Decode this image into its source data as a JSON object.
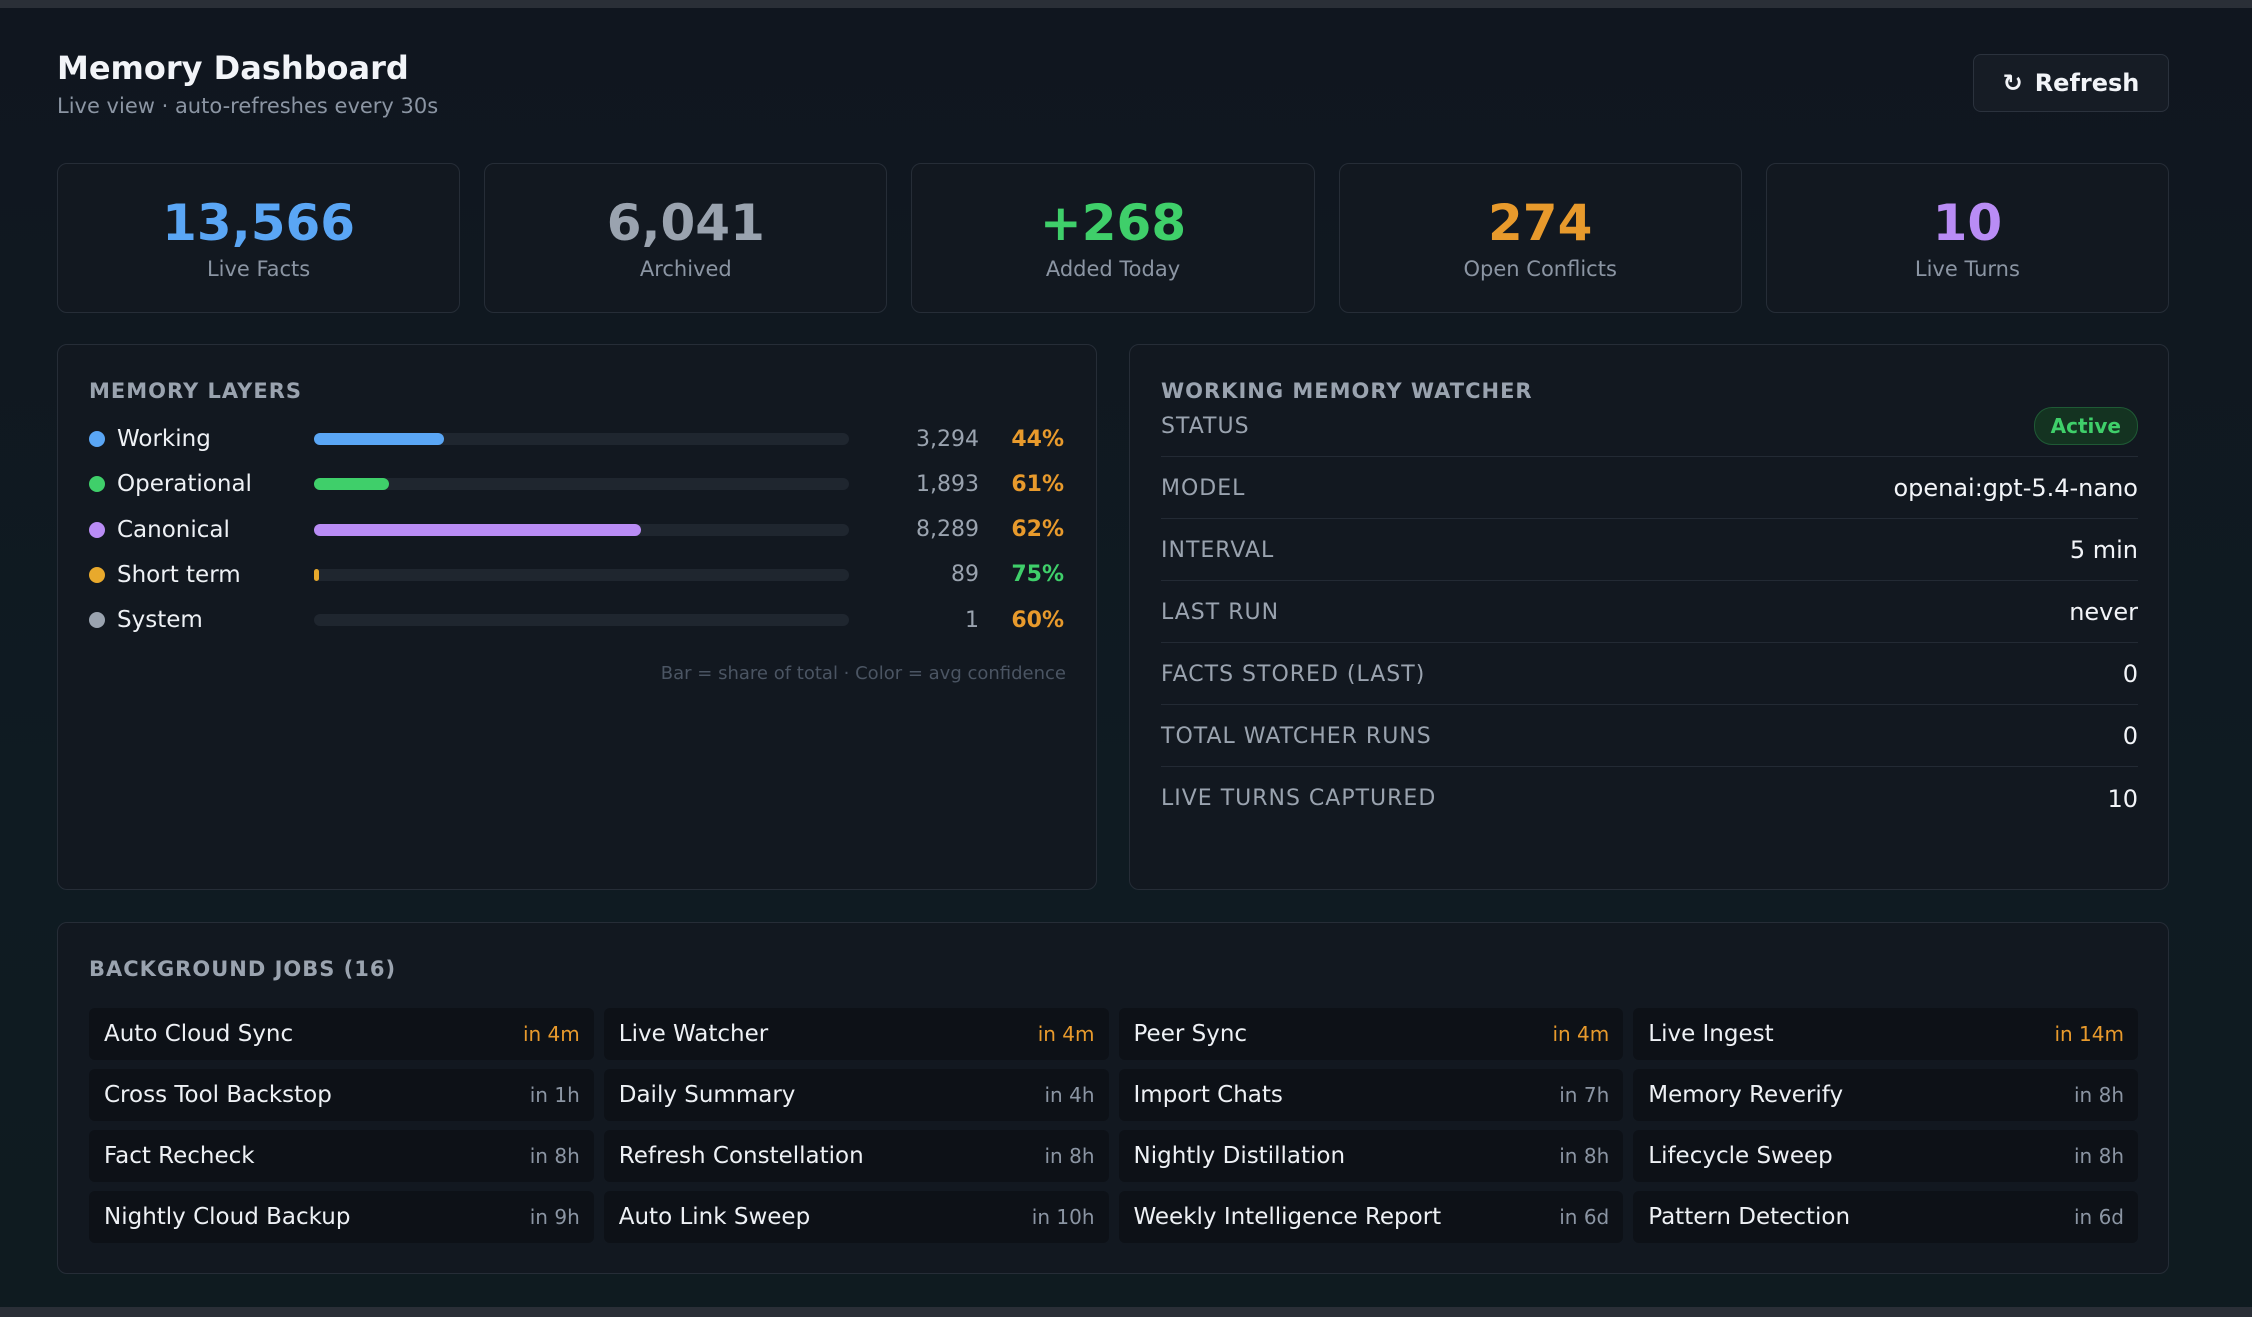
{
  "header": {
    "title": "Memory Dashboard",
    "subtitle": "Live view · auto-refreshes every 30s",
    "refresh_icon": "↻",
    "refresh_label": "Refresh"
  },
  "stats": [
    {
      "value": "13,566",
      "label": "Live Facts",
      "color": "#5aa6f5"
    },
    {
      "value": "6,041",
      "label": "Archived",
      "color": "#9aa3af"
    },
    {
      "value": "+268",
      "label": "Added Today",
      "color": "#3fcf6a"
    },
    {
      "value": "274",
      "label": "Open Conflicts",
      "color": "#e89a2c"
    },
    {
      "value": "10",
      "label": "Live Turns",
      "color": "#b98cf5"
    }
  ],
  "layers": {
    "title": "MEMORY LAYERS",
    "note": "Bar = share of total · Color = avg confidence",
    "items": [
      {
        "name": "Working",
        "count": "3,294",
        "pct": "44%",
        "share": 0.243,
        "dot": "#5aa6f5",
        "bar": "#5aa6f5",
        "pct_color": "#e89a2c"
      },
      {
        "name": "Operational",
        "count": "1,893",
        "pct": "61%",
        "share": 0.14,
        "dot": "#3fcf6a",
        "bar": "#3fcf6a",
        "pct_color": "#e89a2c"
      },
      {
        "name": "Canonical",
        "count": "8,289",
        "pct": "62%",
        "share": 0.611,
        "dot": "#b98cf5",
        "bar": "#b98cf5",
        "pct_color": "#e89a2c"
      },
      {
        "name": "Short term",
        "count": "89",
        "pct": "75%",
        "share": 0.007,
        "dot": "#e8a92c",
        "bar": "#e8a92c",
        "pct_color": "#3fcf6a"
      },
      {
        "name": "System",
        "count": "1",
        "pct": "60%",
        "share": 0.0,
        "dot": "#9aa3af",
        "bar": "#9aa3af",
        "pct_color": "#e89a2c"
      }
    ]
  },
  "watcher": {
    "title": "WORKING MEMORY WATCHER",
    "status_key": "STATUS",
    "status_value": "Active",
    "rows": [
      {
        "key": "MODEL",
        "value": "openai:gpt-5.4-nano"
      },
      {
        "key": "INTERVAL",
        "value": "5 min"
      },
      {
        "key": "LAST RUN",
        "value": "never"
      },
      {
        "key": "FACTS STORED (LAST)",
        "value": "0"
      },
      {
        "key": "TOTAL WATCHER RUNS",
        "value": "0"
      },
      {
        "key": "LIVE TURNS CAPTURED",
        "value": "10"
      }
    ]
  },
  "jobs": {
    "title": "BACKGROUND JOBS (16)",
    "items": [
      {
        "name": "Auto Cloud Sync",
        "when": "in 4m",
        "soon": true
      },
      {
        "name": "Live Watcher",
        "when": "in 4m",
        "soon": true
      },
      {
        "name": "Peer Sync",
        "when": "in 4m",
        "soon": true
      },
      {
        "name": "Live Ingest",
        "when": "in 14m",
        "soon": true
      },
      {
        "name": "Cross Tool Backstop",
        "when": "in 1h",
        "soon": false
      },
      {
        "name": "Daily Summary",
        "when": "in 4h",
        "soon": false
      },
      {
        "name": "Import Chats",
        "when": "in 7h",
        "soon": false
      },
      {
        "name": "Memory Reverify",
        "when": "in 8h",
        "soon": false
      },
      {
        "name": "Fact Recheck",
        "when": "in 8h",
        "soon": false
      },
      {
        "name": "Refresh Constellation",
        "when": "in 8h",
        "soon": false
      },
      {
        "name": "Nightly Distillation",
        "when": "in 8h",
        "soon": false
      },
      {
        "name": "Lifecycle Sweep",
        "when": "in 8h",
        "soon": false
      },
      {
        "name": "Nightly Cloud Backup",
        "when": "in 9h",
        "soon": false
      },
      {
        "name": "Auto Link Sweep",
        "when": "in 10h",
        "soon": false
      },
      {
        "name": "Weekly Intelligence Report",
        "when": "in 6d",
        "soon": false
      },
      {
        "name": "Pattern Detection",
        "when": "in 6d",
        "soon": false
      }
    ]
  }
}
